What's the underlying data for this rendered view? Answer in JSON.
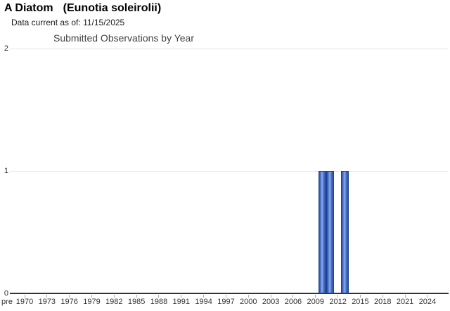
{
  "page": {
    "common_name": "A Diatom",
    "scientific_name": "(Eunotia soleirolii)",
    "data_current_label": "Data current as of:",
    "data_current_date": "11/15/2025"
  },
  "chart_data": {
    "type": "bar",
    "title": "Submitted Observations by Year",
    "xlabel": "",
    "ylabel": "",
    "ylim": [
      0,
      2
    ],
    "y_ticks": [
      0,
      1,
      2
    ],
    "grid": "horizontal-only",
    "legend": "none",
    "x_first_category_label": "pre",
    "x_year_start": 1970,
    "x_year_end": 2025,
    "x_tick_labels": [
      "pre",
      "1970",
      "1973",
      "1976",
      "1979",
      "1982",
      "1985",
      "1988",
      "1991",
      "1994",
      "1997",
      "2000",
      "2003",
      "2006",
      "2009",
      "2012",
      "2015",
      "2018",
      "2021",
      "2024"
    ],
    "bars": [
      {
        "year": 2010,
        "value": 1
      },
      {
        "year": 2011,
        "value": 1
      },
      {
        "year": 2013,
        "value": 1
      }
    ],
    "all_other_years_value": 0
  },
  "colors": {
    "bar_edge": "#1e4396",
    "bar_dark": "#2a4da4",
    "bar_mid": "#4a71c9",
    "bar_highlight": "#8fabe9",
    "axis_line": "#333333",
    "gridline": "#e7e7e7",
    "tick": "#aaaaaa",
    "axis_label_text": "#333333",
    "chart_title_text": "#444444",
    "title_text": "#000000"
  }
}
